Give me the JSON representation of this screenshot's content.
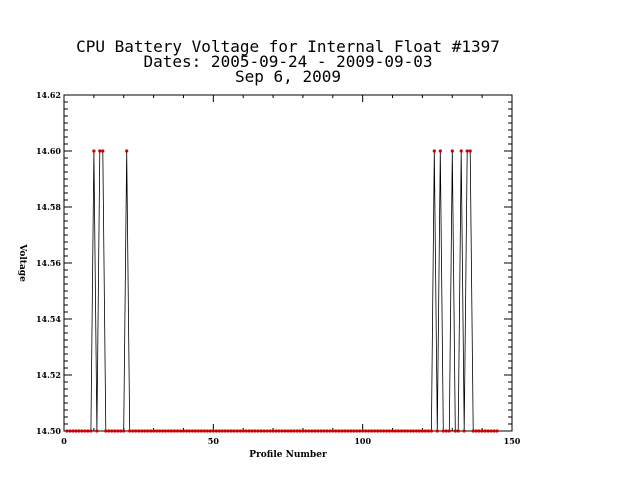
{
  "chart_data": {
    "type": "line",
    "title_lines": [
      "CPU Battery Voltage for Internal Float #1397",
      "Dates:  2005-09-24 -  2009-09-03",
      "Sep  6, 2009"
    ],
    "xlabel": "Profile Number",
    "ylabel": "Voltage",
    "xlim": [
      0,
      150
    ],
    "ylim": [
      14.5,
      14.62
    ],
    "x_ticks": [
      0,
      50,
      100,
      150
    ],
    "y_ticks": [
      14.5,
      14.52,
      14.54,
      14.56,
      14.58,
      14.6,
      14.62
    ],
    "x_tick_labels": [
      "0",
      "50",
      "100",
      "150"
    ],
    "y_tick_labels": [
      "14.50",
      "14.52",
      "14.54",
      "14.56",
      "14.58",
      "14.60",
      "14.62"
    ],
    "grid": false,
    "line_color": "#000000",
    "marker_color": "#cc0000",
    "baseline": 14.5,
    "high_value": 14.6,
    "high_profiles": [
      10,
      12,
      13,
      21,
      124,
      126,
      130,
      133,
      135,
      136
    ],
    "last_profile": 145
  }
}
